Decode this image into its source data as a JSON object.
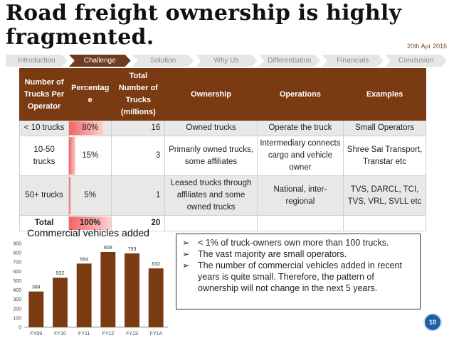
{
  "title": "Road freight ownership is highly fragmented.",
  "date": "20th Apr 2016",
  "nav": [
    "Introduction",
    "Challenge",
    "Solution",
    "Why Us",
    "Differentiation",
    "Financials",
    "Conclusion"
  ],
  "table": {
    "headers": [
      "Number of Trucks Per Operator",
      "Percentag e",
      "Total Number of Trucks (millions)",
      "Ownership",
      "Operations",
      "Examples"
    ],
    "rows": [
      {
        "operator": "< 10 trucks",
        "pct": "80%",
        "pct_value": 80,
        "total": "16",
        "ownership": "Owned trucks",
        "operations": "Operate the truck",
        "examples": "Small Operators"
      },
      {
        "operator": "10-50 trucks",
        "pct": "15%",
        "pct_value": 15,
        "total": "3",
        "ownership": "Primarily owned trucks, some affiliates",
        "operations": "Intermediary connects cargo and vehicle owner",
        "examples": "Shree Sai Transport, Transtar etc"
      },
      {
        "operator": "50+ trucks",
        "pct": "5%",
        "pct_value": 5,
        "total": "1",
        "ownership": "Leased trucks through affiliates and some owned trucks",
        "operations": "National, inter-regional",
        "examples": "TVS, DARCL, TCI, TVS, VRL, SVLL etc"
      }
    ],
    "total_row": {
      "label": "Total",
      "pct": "100%",
      "pct_value": 100,
      "total": "20"
    }
  },
  "chart_data": {
    "type": "bar",
    "title": "Commercial vehicles added",
    "categories": [
      "FY09",
      "FY10",
      "FY11",
      "FY12",
      "FY13",
      "FY14"
    ],
    "values": [
      384,
      532,
      684,
      809,
      793,
      632
    ],
    "ylim": [
      0,
      900
    ],
    "yticks": [
      0,
      100,
      200,
      300,
      400,
      500,
      600,
      700,
      800,
      900
    ],
    "bar_color": "#7b3b12"
  },
  "bullets": [
    "< 1% of truck-owners own more than 100 trucks.",
    "The vast majority are small operators.",
    "The number of commercial vehicles added in recent years is quite small. Therefore, the pattern of ownership will not change in the next 5 years."
  ],
  "bullet_mark": "➢",
  "page_number": "10"
}
